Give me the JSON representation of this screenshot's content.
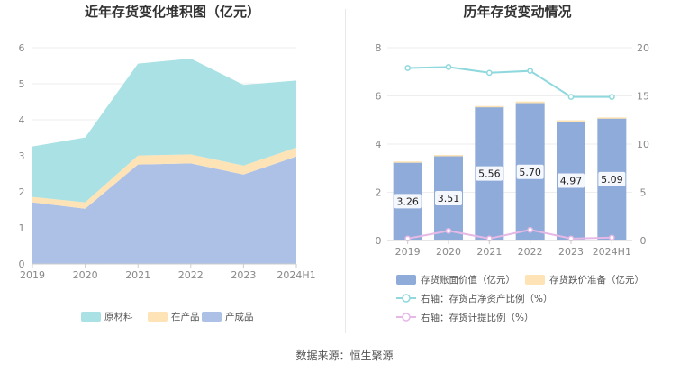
{
  "source": "数据来源：恒生聚源",
  "colors": {
    "raw": "#a9e1e4",
    "wip": "#fde3b6",
    "finished": "#adc1e6",
    "bar": "#8eabd9",
    "reserve": "#fde3b6",
    "netRatio": "#8fd8de",
    "provisionRatio": "#e6b8e6"
  },
  "chart_data": [
    {
      "type": "area",
      "stacked": true,
      "title": "近年存货变化堆积图（亿元）",
      "x": [
        "2019",
        "2020",
        "2021",
        "2022",
        "2023",
        "2024H1"
      ],
      "ylim": [
        0,
        6
      ],
      "yticks": [
        "0",
        "1",
        "2",
        "3",
        "4",
        "5",
        "6"
      ],
      "grid": true,
      "legend_position": "bottom",
      "series": [
        {
          "name": "原材料",
          "key": "raw",
          "values": [
            1.4,
            1.8,
            2.55,
            2.66,
            2.24,
            1.86
          ]
        },
        {
          "name": "在产品",
          "key": "wip",
          "values": [
            0.15,
            0.18,
            0.25,
            0.25,
            0.25,
            0.25
          ]
        },
        {
          "name": "产成品",
          "key": "finished",
          "values": [
            1.71,
            1.53,
            2.76,
            2.79,
            2.48,
            2.98
          ]
        }
      ],
      "legend_order": [
        "原材料",
        "在产品",
        "产成品"
      ]
    },
    {
      "type": "bar",
      "title": "历年存货变动情况",
      "categories": [
        "2019",
        "2020",
        "2021",
        "2022",
        "2023",
        "2024H1"
      ],
      "ylim_left": [
        0,
        8
      ],
      "yticks_left": [
        "0",
        "2",
        "4",
        "6",
        "8"
      ],
      "ylim_right": [
        0,
        20
      ],
      "yticks_right": [
        "0",
        "5",
        "10",
        "15",
        "20"
      ],
      "grid": true,
      "legend_position": "bottom",
      "series": [
        {
          "name": "存货账面价值（亿元）",
          "key": "bar",
          "values": [
            3.26,
            3.51,
            5.56,
            5.7,
            4.97,
            5.09
          ],
          "labels": [
            "3.26",
            "3.51",
            "5.56",
            "5.70",
            "4.97",
            "5.09"
          ]
        },
        {
          "name": "存货跌价准备（亿元）",
          "key": "reserve",
          "values": [
            0.02,
            0.04,
            0.02,
            0.07,
            0.02,
            0.02
          ]
        },
        {
          "name": "右轴：存货占净资产比例（%）",
          "key": "netRatio",
          "axis": "right",
          "values": [
            17.9,
            18.0,
            17.4,
            17.6,
            14.9,
            14.9
          ]
        },
        {
          "name": "右轴：存货计提比例（%）",
          "key": "provisionRatio",
          "axis": "right",
          "values": [
            0.2,
            1.0,
            0.2,
            1.1,
            0.2,
            0.3
          ]
        }
      ]
    }
  ]
}
